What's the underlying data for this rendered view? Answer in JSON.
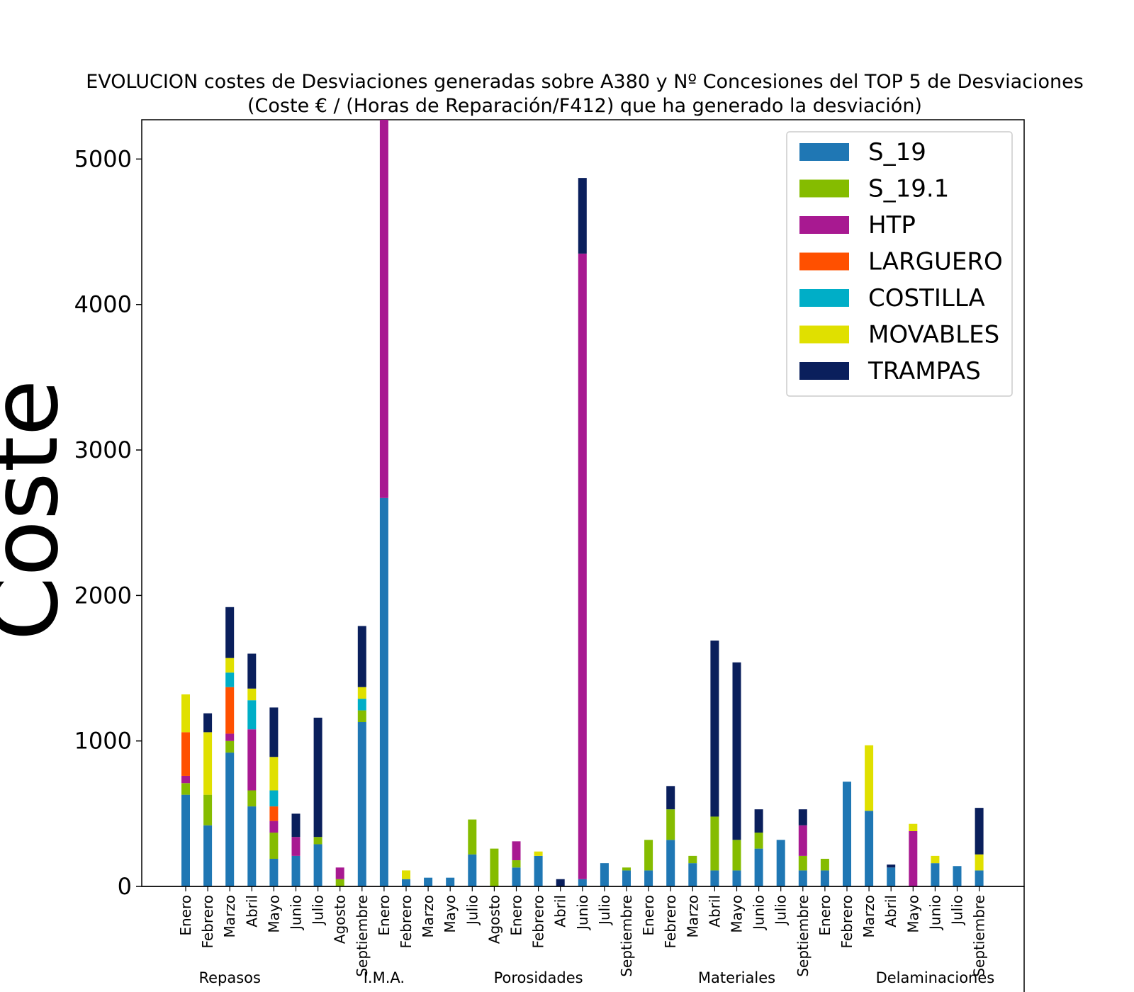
{
  "chart_data": {
    "type": "bar",
    "stacked": true,
    "title": "EVOLUCION costes de Desviaciones  generadas sobre A380 y Nº Concesiones del TOP 5 de Desviaciones",
    "subtitle": "(Coste € / (Horas de Reparación/F412) que ha generado la desviación)",
    "xlabel": "",
    "ylabel": "Coste",
    "ylim": [
      0,
      5270
    ],
    "yticks": [
      0,
      1000,
      2000,
      3000,
      4000,
      5000
    ],
    "grid": false,
    "legend_position": "top-right",
    "groups": [
      {
        "name": "Repasos",
        "label_index": 2
      },
      {
        "name": "I.M.A.",
        "label_index": 9
      },
      {
        "name": "Porosidades",
        "label_index": 16
      },
      {
        "name": "Materiales",
        "label_index": 25
      },
      {
        "name": "Delaminaciones",
        "label_index": 34
      }
    ],
    "categories": [
      "Enero",
      "Febrero",
      "Marzo",
      "Abril",
      "Mayo",
      "Junio",
      "Julio",
      "Agosto",
      "Septiembre",
      "Enero",
      "Febrero",
      "Marzo",
      "Mayo",
      "Julio",
      "Agosto",
      "Enero",
      "Febrero",
      "Abril",
      "Junio",
      "Julio",
      "Septiembre",
      "Enero",
      "Febrero",
      "Marzo",
      "Abril",
      "Mayo",
      "Junio",
      "Julio",
      "Septiembre",
      "Enero",
      "Febrero",
      "Marzo",
      "Abril",
      "Mayo",
      "Junio",
      "Julio",
      "Septiembre"
    ],
    "series": [
      {
        "name": "S_19",
        "color": "#1f77b4",
        "values": [
          630,
          420,
          920,
          550,
          190,
          210,
          290,
          0,
          1130,
          2670,
          50,
          60,
          60,
          220,
          0,
          130,
          210,
          0,
          50,
          160,
          110,
          110,
          320,
          160,
          110,
          110,
          260,
          320,
          110,
          110,
          720,
          520,
          130,
          0,
          160,
          140,
          110
        ]
      },
      {
        "name": "S_19.1",
        "color": "#85bc00",
        "values": [
          80,
          210,
          80,
          110,
          180,
          0,
          50,
          50,
          80,
          0,
          0,
          0,
          0,
          240,
          260,
          50,
          0,
          0,
          0,
          0,
          20,
          210,
          210,
          50,
          370,
          210,
          110,
          0,
          100,
          80,
          0,
          0,
          0,
          0,
          0,
          0,
          0
        ]
      },
      {
        "name": "HTP",
        "color": "#a81991",
        "values": [
          50,
          0,
          50,
          420,
          80,
          130,
          0,
          80,
          0,
          2600,
          0,
          0,
          0,
          0,
          0,
          130,
          0,
          0,
          4300,
          0,
          0,
          0,
          0,
          0,
          0,
          0,
          0,
          0,
          210,
          0,
          0,
          0,
          0,
          380,
          0,
          0,
          0
        ]
      },
      {
        "name": "LARGUERO",
        "color": "#ff5000",
        "values": [
          300,
          0,
          320,
          0,
          100,
          0,
          0,
          0,
          0,
          0,
          0,
          0,
          0,
          0,
          0,
          0,
          0,
          0,
          0,
          0,
          0,
          0,
          0,
          0,
          0,
          0,
          0,
          0,
          0,
          0,
          0,
          0,
          0,
          0,
          0,
          0,
          0
        ]
      },
      {
        "name": "COSTILLA",
        "color": "#00aec7",
        "values": [
          0,
          0,
          100,
          200,
          110,
          0,
          0,
          0,
          80,
          0,
          0,
          0,
          0,
          0,
          0,
          0,
          0,
          0,
          0,
          0,
          0,
          0,
          0,
          0,
          0,
          0,
          0,
          0,
          0,
          0,
          0,
          0,
          0,
          0,
          0,
          0,
          0
        ]
      },
      {
        "name": "MOVABLES",
        "color": "#e0e000",
        "values": [
          260,
          430,
          100,
          80,
          230,
          0,
          0,
          0,
          80,
          0,
          60,
          0,
          0,
          0,
          0,
          0,
          30,
          0,
          0,
          0,
          0,
          0,
          0,
          0,
          0,
          0,
          0,
          0,
          0,
          0,
          0,
          450,
          0,
          50,
          50,
          0,
          110
        ]
      },
      {
        "name": "TRAMPAS",
        "color": "#0a1f5c",
        "values": [
          0,
          130,
          350,
          240,
          340,
          160,
          820,
          0,
          420,
          0,
          0,
          0,
          0,
          0,
          0,
          0,
          0,
          50,
          520,
          0,
          0,
          0,
          160,
          0,
          1210,
          1220,
          160,
          0,
          110,
          0,
          0,
          0,
          20,
          0,
          0,
          0,
          320
        ]
      }
    ]
  }
}
